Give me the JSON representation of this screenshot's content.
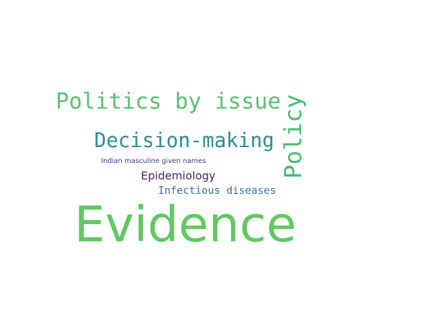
{
  "words": [
    {
      "text": "Evidence",
      "color": "#62c862"
    },
    {
      "text": "Politics by issue",
      "color": "#5cbf73"
    },
    {
      "text": "Policy",
      "color": "#4cba6e"
    },
    {
      "text": "Decision-making",
      "color": "#2f8d8f"
    },
    {
      "text": "Epidemiology",
      "color": "#43236b"
    },
    {
      "text": "Infectious diseases",
      "color": "#3e6d9a"
    },
    {
      "text": "Indian masculine given names",
      "color": "#46307a"
    }
  ]
}
